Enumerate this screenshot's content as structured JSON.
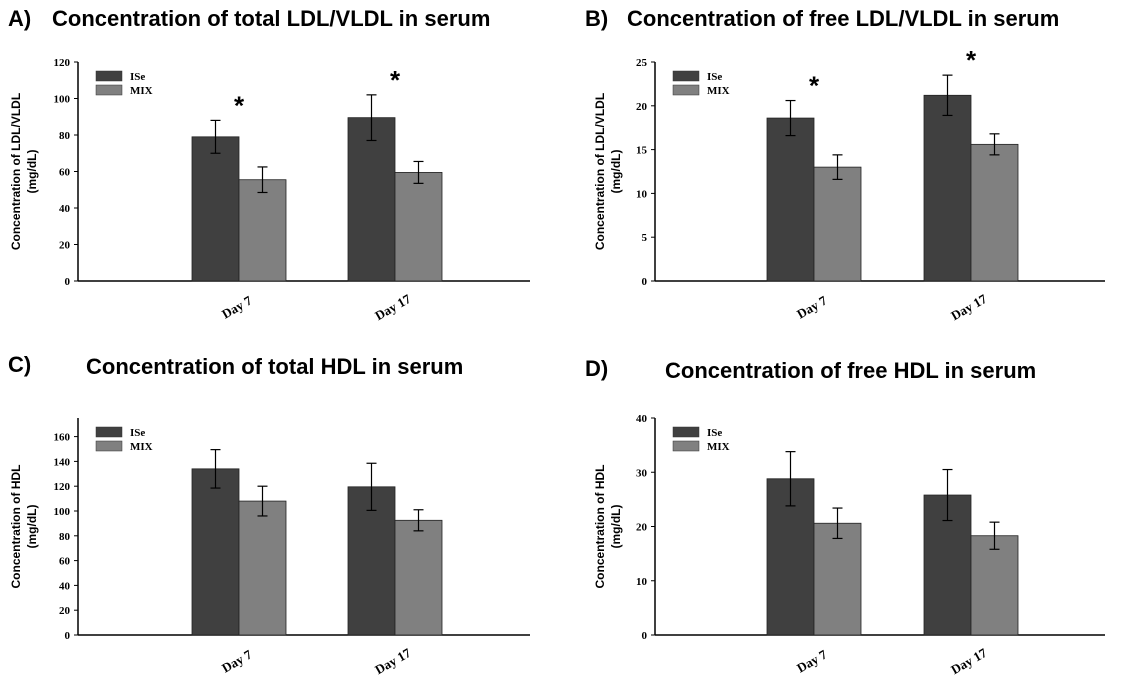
{
  "colors": {
    "ISe": "#404040",
    "MIX": "#808080",
    "axis": "#000000"
  },
  "chart_data": [
    {
      "type": "bar",
      "panel": "A)",
      "title": "Concentration of total LDL/VLDL in serum",
      "ylabel_line1": "Concentration of LDL/VLDL",
      "ylabel_line2": "(mg/dL)",
      "categories": [
        "Day 7",
        "Day 17"
      ],
      "ylim": [
        0,
        120
      ],
      "yticks": [
        0,
        20,
        40,
        60,
        80,
        100,
        120
      ],
      "series": [
        {
          "name": "ISe",
          "values": [
            79,
            89.5
          ],
          "errors": [
            9,
            12.5
          ]
        },
        {
          "name": "MIX",
          "values": [
            55.5,
            59.5
          ],
          "errors": [
            7,
            6
          ]
        }
      ],
      "significance": [
        true,
        true
      ],
      "annotation": "*",
      "grid": false,
      "legend": "top-left"
    },
    {
      "type": "bar",
      "panel": "B)",
      "title": "Concentration of free LDL/VLDL in serum",
      "ylabel_line1": "Concentration of LDL/VLDL",
      "ylabel_line2": "(mg/dL)",
      "categories": [
        "Day 7",
        "Day 17"
      ],
      "ylim": [
        0,
        25
      ],
      "yticks": [
        0,
        5,
        10,
        15,
        20,
        25
      ],
      "series": [
        {
          "name": "ISe",
          "values": [
            18.6,
            21.2
          ],
          "errors": [
            2.0,
            2.3
          ]
        },
        {
          "name": "MIX",
          "values": [
            13.0,
            15.6
          ],
          "errors": [
            1.4,
            1.2
          ]
        }
      ],
      "significance": [
        true,
        true
      ],
      "annotation": "*",
      "grid": false,
      "legend": "top-left"
    },
    {
      "type": "bar",
      "panel": "C)",
      "title": "Concentration of total HDL in serum",
      "ylabel_line1": "Concentration of HDL",
      "ylabel_line2": "(mg/dL)",
      "categories": [
        "Day 7",
        "Day 17"
      ],
      "ylim": [
        0,
        175
      ],
      "yticks": [
        0,
        20,
        40,
        60,
        80,
        100,
        120,
        140,
        160
      ],
      "series": [
        {
          "name": "ISe",
          "values": [
            134,
            119.5
          ],
          "errors": [
            15.5,
            19
          ]
        },
        {
          "name": "MIX",
          "values": [
            108,
            92.5
          ],
          "errors": [
            12,
            8.5
          ]
        }
      ],
      "significance": [
        false,
        false
      ],
      "annotation": "",
      "grid": false,
      "legend": "top-left"
    },
    {
      "type": "bar",
      "panel": "D)",
      "title": "Concentration of free HDL in serum",
      "ylabel_line1": "Concentration of HDL",
      "ylabel_line2": "(mg/dL)",
      "categories": [
        "Day 7",
        "Day 17"
      ],
      "ylim": [
        0,
        40
      ],
      "yticks": [
        0,
        10,
        20,
        30,
        40
      ],
      "series": [
        {
          "name": "ISe",
          "values": [
            28.8,
            25.8
          ],
          "errors": [
            5.0,
            4.7
          ]
        },
        {
          "name": "MIX",
          "values": [
            20.6,
            18.3
          ],
          "errors": [
            2.8,
            2.5
          ]
        }
      ],
      "significance": [
        false,
        false
      ],
      "annotation": "",
      "grid": false,
      "legend": "top-left"
    }
  ]
}
